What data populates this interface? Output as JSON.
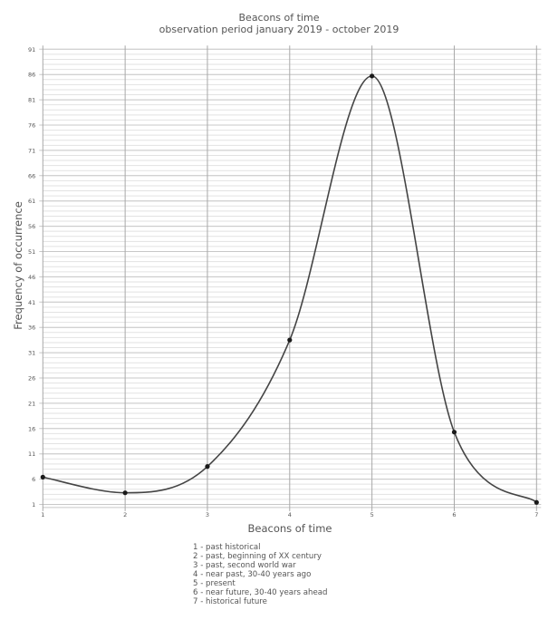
{
  "chart_data": {
    "type": "line",
    "title": "Beacons of time",
    "subtitle": "observation period january 2019 - october 2019",
    "xlabel": "Beacons of time",
    "ylabel": "Frequency of occurrence",
    "x": [
      1,
      2,
      3,
      4,
      5,
      6,
      7
    ],
    "x_tick_labels": [
      "1",
      "2",
      "3",
      "4",
      "5",
      "6",
      "7"
    ],
    "values": [
      6.4,
      3.3,
      8.5,
      33.5,
      85.7,
      15.3,
      1.4
    ],
    "y_tick_labels": [
      "91",
      "86",
      "81",
      "76",
      "71",
      "66",
      "61",
      "56",
      "51",
      "46",
      "41",
      "36",
      "31",
      "26",
      "21",
      "16",
      "11",
      "6",
      "1"
    ],
    "y_ticks": [
      1,
      6,
      11,
      16,
      21,
      26,
      31,
      36,
      41,
      46,
      51,
      56,
      61,
      66,
      71,
      76,
      81,
      86,
      91
    ],
    "ylim": [
      0.4,
      91
    ],
    "xlim": [
      1,
      7
    ],
    "grid": true,
    "minor_grid_step": 1,
    "smooth": true,
    "markers": true,
    "legend": [
      "1 - past historical",
      "2 - past, beginning of XX century",
      "3 - past, second world war",
      "4 - near past, 30-40 years ago",
      "5 - present",
      "6 - near future, 30-40 years ahead",
      "7 - historical future"
    ],
    "legend_position": "bottom"
  },
  "colors": {
    "line": "#444444",
    "marker": "#1a1a1a",
    "grid_minor": "#e2e2e2",
    "grid_major_h": "#c8c8c8",
    "grid_major_v": "#a8a8a8",
    "text": "#555555"
  }
}
